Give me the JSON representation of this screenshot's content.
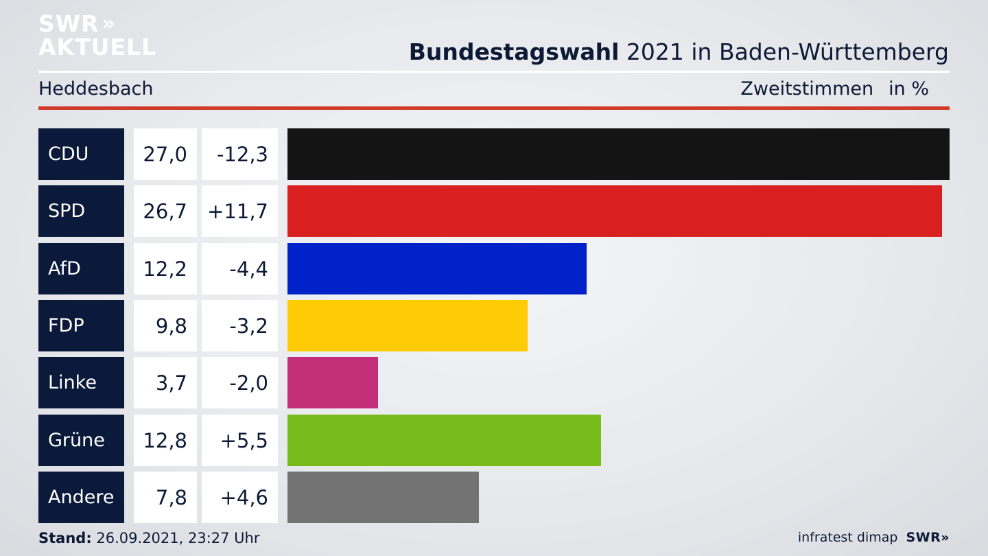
{
  "logo": {
    "line1": "SWR",
    "chevrons": "»",
    "line2": "AKTUELL"
  },
  "header": {
    "title_bold": "Bundestagswahl",
    "title_rest": " 2021 in Baden-Württemberg"
  },
  "subheader": {
    "location": "Heddesbach",
    "measure": "Zweitstimmen",
    "unit": "in %"
  },
  "footer": {
    "stand_label": "Stand:",
    "stand_value": " 26.09.2021, 23:27 Uhr",
    "source": "infratest dimap",
    "brand": "SWR»"
  },
  "colors": {
    "CDU": "#141414",
    "SPD": "#d91f1f",
    "AfD": "#0022c8",
    "FDP": "#fecb05",
    "Linke": "#c22e78",
    "Grüne": "#78bc1b",
    "Andere": "#737373",
    "party_box": "#0b1a3a",
    "accent_rule": "#d13a2b"
  },
  "chart_data": {
    "type": "bar",
    "orientation": "horizontal",
    "categories": [
      "CDU",
      "SPD",
      "AfD",
      "FDP",
      "Linke",
      "Grüne",
      "Andere"
    ],
    "values": [
      27.0,
      26.7,
      12.2,
      9.8,
      3.7,
      12.8,
      7.8
    ],
    "value_labels": [
      "27,0",
      "26,7",
      "12,2",
      "9,8",
      "3,7",
      "12,8",
      "7,8"
    ],
    "diff_labels": [
      "-12,3",
      "+11,7",
      "-4,4",
      "-3,2",
      "-2,0",
      "+5,5",
      "+4,6"
    ],
    "diffs": [
      -12.3,
      11.7,
      -4.4,
      -3.2,
      -2.0,
      5.5,
      4.6
    ],
    "unit": "%",
    "xlim": [
      0,
      27.0
    ]
  }
}
